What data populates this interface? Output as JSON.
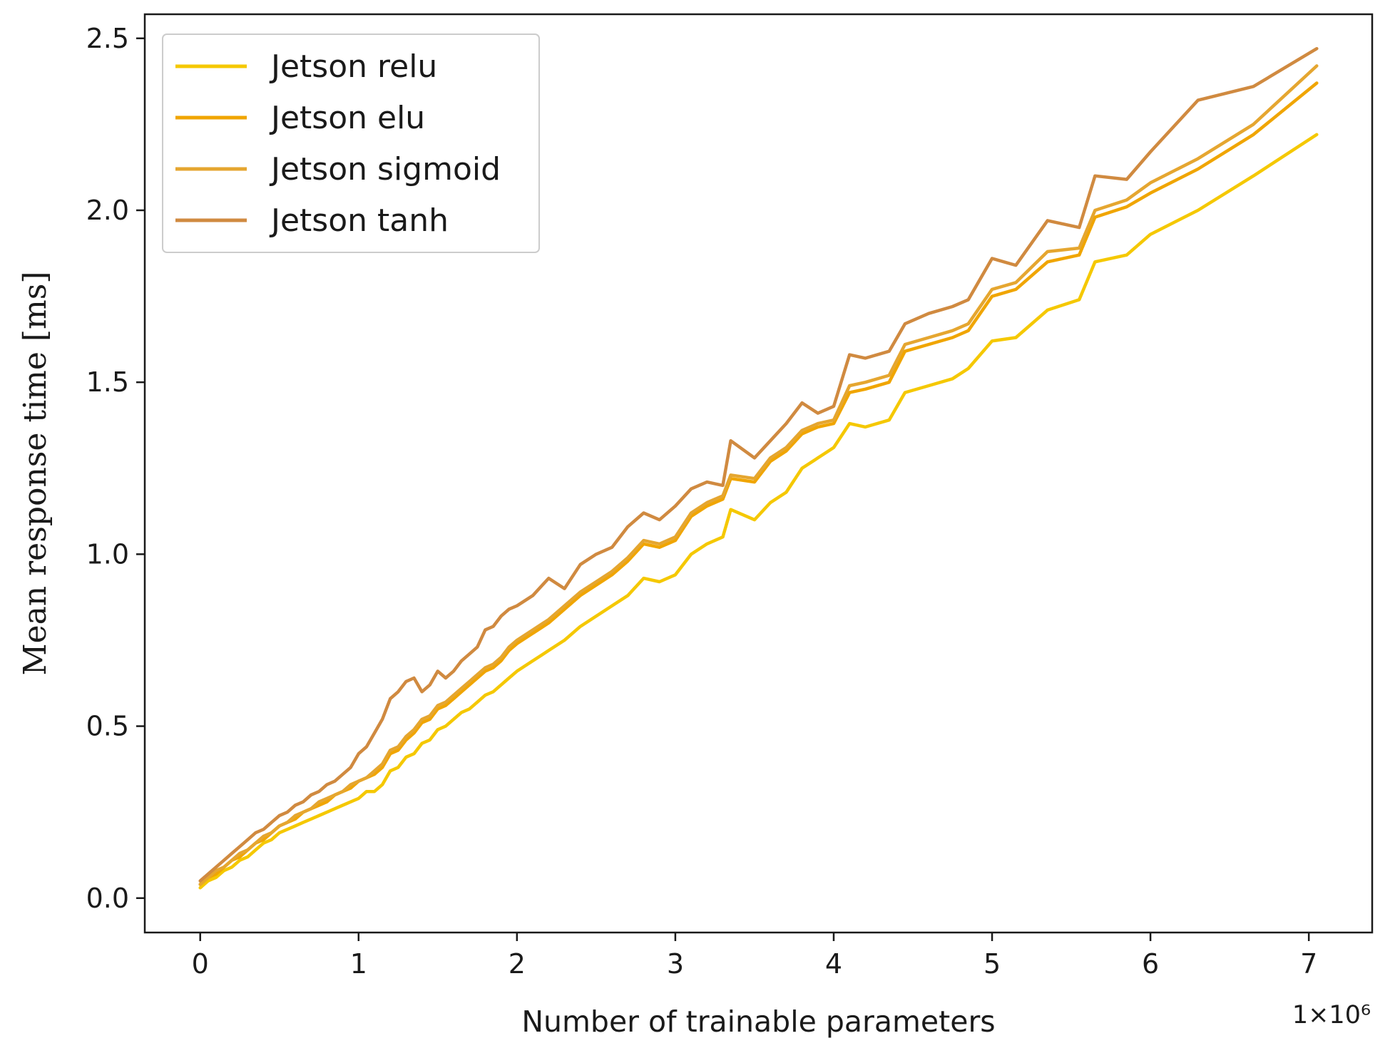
{
  "chart_data": {
    "type": "line",
    "title": "",
    "xlabel": "Number of trainable parameters",
    "ylabel": "Mean response time [ms]",
    "x_offset_label": "1×10⁶",
    "xlim": [
      -0.35,
      7.4
    ],
    "ylim": [
      -0.1,
      2.57
    ],
    "xticks": [
      0,
      1,
      2,
      3,
      4,
      5,
      6,
      7
    ],
    "xtick_labels": [
      "0",
      "1",
      "2",
      "3",
      "4",
      "5",
      "6",
      "7"
    ],
    "yticks": [
      0.0,
      0.5,
      1.0,
      1.5,
      2.0,
      2.5
    ],
    "ytick_labels": [
      "0.0",
      "0.5",
      "1.0",
      "1.5",
      "2.0",
      "2.5"
    ],
    "grid": false,
    "legend_position": "top-left",
    "x_units": "millions of parameters",
    "x": [
      0.0,
      0.05,
      0.1,
      0.15,
      0.2,
      0.25,
      0.3,
      0.35,
      0.4,
      0.45,
      0.5,
      0.55,
      0.6,
      0.65,
      0.7,
      0.75,
      0.8,
      0.85,
      0.9,
      0.95,
      1.0,
      1.05,
      1.1,
      1.15,
      1.2,
      1.25,
      1.3,
      1.35,
      1.4,
      1.45,
      1.5,
      1.55,
      1.6,
      1.65,
      1.7,
      1.75,
      1.8,
      1.85,
      1.9,
      1.95,
      2.0,
      2.1,
      2.2,
      2.3,
      2.4,
      2.5,
      2.6,
      2.7,
      2.8,
      2.9,
      3.0,
      3.1,
      3.2,
      3.3,
      3.35,
      3.5,
      3.6,
      3.7,
      3.8,
      3.9,
      4.0,
      4.1,
      4.2,
      4.35,
      4.45,
      4.6,
      4.75,
      4.85,
      5.0,
      5.15,
      5.35,
      5.55,
      5.65,
      5.85,
      6.0,
      6.3,
      6.65,
      7.05
    ],
    "series": [
      {
        "name": "Jetson relu",
        "color": "#f5c800",
        "values": [
          0.03,
          0.05,
          0.06,
          0.08,
          0.09,
          0.11,
          0.12,
          0.14,
          0.16,
          0.17,
          0.19,
          0.2,
          0.21,
          0.22,
          0.23,
          0.24,
          0.25,
          0.26,
          0.27,
          0.28,
          0.29,
          0.31,
          0.31,
          0.33,
          0.37,
          0.38,
          0.41,
          0.42,
          0.45,
          0.46,
          0.49,
          0.5,
          0.52,
          0.54,
          0.55,
          0.57,
          0.59,
          0.6,
          0.62,
          0.64,
          0.66,
          0.69,
          0.72,
          0.75,
          0.79,
          0.82,
          0.85,
          0.88,
          0.93,
          0.92,
          0.94,
          1.0,
          1.03,
          1.05,
          1.13,
          1.1,
          1.15,
          1.18,
          1.25,
          1.28,
          1.31,
          1.38,
          1.37,
          1.39,
          1.47,
          1.49,
          1.51,
          1.54,
          1.62,
          1.63,
          1.71,
          1.74,
          1.85,
          1.87,
          1.93,
          2.0,
          2.1,
          2.22
        ]
      },
      {
        "name": "Jetson elu",
        "color": "#f0a500",
        "values": [
          0.04,
          0.06,
          0.07,
          0.09,
          0.11,
          0.12,
          0.14,
          0.16,
          0.17,
          0.19,
          0.21,
          0.22,
          0.23,
          0.25,
          0.26,
          0.27,
          0.28,
          0.3,
          0.31,
          0.32,
          0.34,
          0.35,
          0.36,
          0.38,
          0.42,
          0.43,
          0.46,
          0.48,
          0.51,
          0.52,
          0.55,
          0.56,
          0.58,
          0.6,
          0.62,
          0.64,
          0.66,
          0.67,
          0.69,
          0.72,
          0.74,
          0.77,
          0.8,
          0.84,
          0.88,
          0.91,
          0.94,
          0.98,
          1.03,
          1.02,
          1.04,
          1.11,
          1.14,
          1.16,
          1.22,
          1.21,
          1.27,
          1.3,
          1.35,
          1.37,
          1.38,
          1.47,
          1.48,
          1.5,
          1.59,
          1.61,
          1.63,
          1.65,
          1.75,
          1.77,
          1.85,
          1.87,
          1.98,
          2.01,
          2.05,
          2.12,
          2.22,
          2.37
        ]
      },
      {
        "name": "Jetson sigmoid",
        "color": "#e5a630",
        "values": [
          0.04,
          0.06,
          0.08,
          0.09,
          0.11,
          0.13,
          0.14,
          0.16,
          0.18,
          0.19,
          0.21,
          0.22,
          0.24,
          0.25,
          0.26,
          0.28,
          0.29,
          0.3,
          0.31,
          0.33,
          0.34,
          0.35,
          0.37,
          0.39,
          0.43,
          0.44,
          0.47,
          0.49,
          0.52,
          0.53,
          0.56,
          0.57,
          0.59,
          0.61,
          0.63,
          0.65,
          0.67,
          0.68,
          0.7,
          0.73,
          0.75,
          0.78,
          0.81,
          0.85,
          0.89,
          0.92,
          0.95,
          0.99,
          1.04,
          1.03,
          1.05,
          1.12,
          1.15,
          1.17,
          1.23,
          1.22,
          1.28,
          1.31,
          1.36,
          1.38,
          1.39,
          1.49,
          1.5,
          1.52,
          1.61,
          1.63,
          1.65,
          1.67,
          1.77,
          1.79,
          1.88,
          1.89,
          2.0,
          2.03,
          2.08,
          2.15,
          2.25,
          2.42
        ]
      },
      {
        "name": "Jetson tanh",
        "color": "#d08a40",
        "values": [
          0.05,
          0.07,
          0.09,
          0.11,
          0.13,
          0.15,
          0.17,
          0.19,
          0.2,
          0.22,
          0.24,
          0.25,
          0.27,
          0.28,
          0.3,
          0.31,
          0.33,
          0.34,
          0.36,
          0.38,
          0.42,
          0.44,
          0.48,
          0.52,
          0.58,
          0.6,
          0.63,
          0.64,
          0.6,
          0.62,
          0.66,
          0.64,
          0.66,
          0.69,
          0.71,
          0.73,
          0.78,
          0.79,
          0.82,
          0.84,
          0.85,
          0.88,
          0.93,
          0.9,
          0.97,
          1.0,
          1.02,
          1.08,
          1.12,
          1.1,
          1.14,
          1.19,
          1.21,
          1.2,
          1.33,
          1.28,
          1.33,
          1.38,
          1.44,
          1.41,
          1.43,
          1.58,
          1.57,
          1.59,
          1.67,
          1.7,
          1.72,
          1.74,
          1.86,
          1.84,
          1.97,
          1.95,
          2.1,
          2.09,
          2.17,
          2.32,
          2.36,
          2.47
        ]
      }
    ]
  }
}
